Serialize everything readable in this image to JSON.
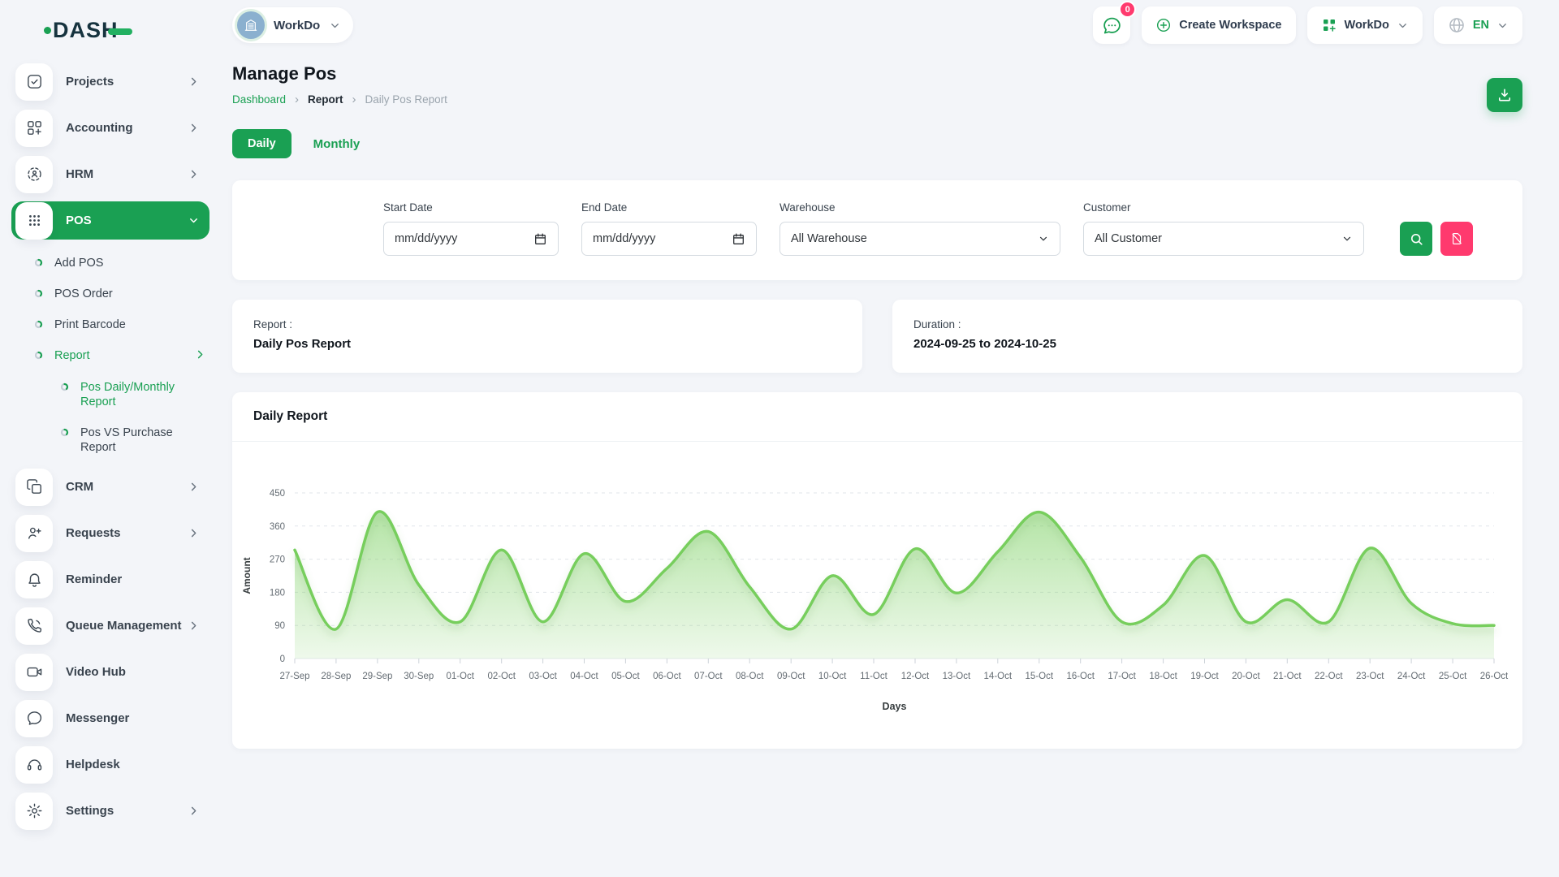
{
  "brand": {
    "logo_text": "DASH"
  },
  "header": {
    "workspace_name": "WorkDo",
    "chat_badge": "0",
    "create_workspace_label": "Create Workspace",
    "workdo_label": "WorkDo",
    "language": "EN"
  },
  "sidebar": {
    "items": [
      {
        "label": "Projects",
        "icon": "projects-icon",
        "chevron": "right"
      },
      {
        "label": "Accounting",
        "icon": "accounting-icon",
        "chevron": "right"
      },
      {
        "label": "HRM",
        "icon": "hrm-icon",
        "chevron": "right"
      },
      {
        "label": "POS",
        "icon": "pos-icon",
        "chevron": "down",
        "active": true,
        "children": [
          {
            "label": "Add POS"
          },
          {
            "label": "POS Order"
          },
          {
            "label": "Print Barcode"
          },
          {
            "label": "Report",
            "active": true,
            "chevron": "right",
            "children": [
              {
                "label": "Pos Daily/Monthly Report",
                "active": true
              },
              {
                "label": "Pos VS Purchase Report"
              }
            ]
          }
        ]
      },
      {
        "label": "CRM",
        "icon": "crm-icon",
        "chevron": "right"
      },
      {
        "label": "Requests",
        "icon": "requests-icon",
        "chevron": "right"
      },
      {
        "label": "Reminder",
        "icon": "reminder-icon"
      },
      {
        "label": "Queue Management",
        "icon": "queue-icon",
        "chevron": "right"
      },
      {
        "label": "Video Hub",
        "icon": "video-hub-icon"
      },
      {
        "label": "Messenger",
        "icon": "messenger-icon"
      },
      {
        "label": "Helpdesk",
        "icon": "helpdesk-icon"
      },
      {
        "label": "Settings",
        "icon": "settings-icon",
        "chevron": "right"
      }
    ]
  },
  "page": {
    "title": "Manage Pos"
  },
  "breadcrumb": {
    "items": [
      "Dashboard",
      "Report",
      "Daily Pos Report"
    ]
  },
  "tabs": {
    "daily": "Daily",
    "monthly": "Monthly"
  },
  "filters": {
    "start_date": {
      "label": "Start Date",
      "placeholder": "mm/dd/yyyy"
    },
    "end_date": {
      "label": "End Date",
      "placeholder": "mm/dd/yyyy"
    },
    "warehouse": {
      "label": "Warehouse",
      "value": "All Warehouse"
    },
    "customer": {
      "label": "Customer",
      "value": "All Customer"
    }
  },
  "cards": {
    "report": {
      "label": "Report :",
      "value": "Daily Pos Report"
    },
    "duration": {
      "label": "Duration :",
      "value": "2024-09-25 to 2024-10-25"
    }
  },
  "chart_data": {
    "type": "area",
    "title": "Daily Report",
    "xlabel": "Days",
    "ylabel": "Amount",
    "ylim": [
      0,
      450
    ],
    "yticks": [
      0,
      90,
      180,
      270,
      360,
      450
    ],
    "grid": "dashed-horizontal",
    "legend": "none",
    "curve": "smooth",
    "categories": [
      "27-Sep",
      "28-Sep",
      "29-Sep",
      "30-Sep",
      "01-Oct",
      "02-Oct",
      "03-Oct",
      "04-Oct",
      "05-Oct",
      "06-Oct",
      "07-Oct",
      "08-Oct",
      "09-Oct",
      "10-Oct",
      "11-Oct",
      "12-Oct",
      "13-Oct",
      "14-Oct",
      "15-Oct",
      "16-Oct",
      "17-Oct",
      "18-Oct",
      "19-Oct",
      "20-Oct",
      "21-Oct",
      "22-Oct",
      "23-Oct",
      "24-Oct",
      "25-Oct",
      "26-Oct"
    ],
    "values": [
      295,
      80,
      398,
      200,
      100,
      295,
      100,
      285,
      155,
      245,
      345,
      195,
      80,
      225,
      120,
      298,
      178,
      290,
      398,
      275,
      100,
      145,
      280,
      100,
      160,
      100,
      300,
      150,
      95,
      90
    ]
  },
  "colors": {
    "primary": "#1aa053",
    "danger": "#ff3a6e",
    "chart_line": "#77ce5d",
    "avatar_blue": "#8bb0cf"
  }
}
